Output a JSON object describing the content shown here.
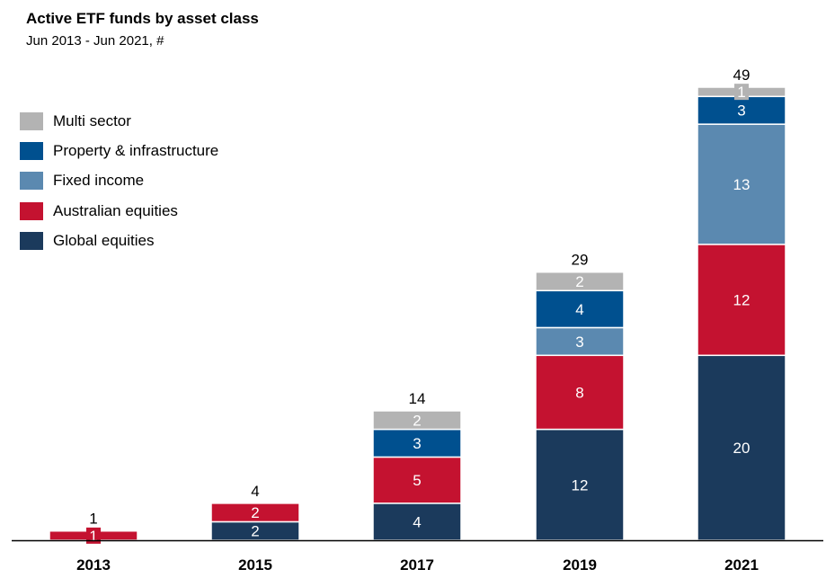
{
  "chart_data": {
    "type": "bar",
    "stacked": true,
    "title": "Active ETF funds by asset class",
    "subtitle": "Jun 2013 - Jun 2021, #",
    "categories": [
      "2013",
      "2015",
      "2017",
      "2019",
      "2021"
    ],
    "series": [
      {
        "name": "Global equities",
        "color": "#1b3a5c",
        "values": [
          0,
          2,
          4,
          12,
          20
        ]
      },
      {
        "name": "Australian equities",
        "color": "#c41230",
        "values": [
          1,
          2,
          5,
          8,
          12
        ]
      },
      {
        "name": "Fixed income",
        "color": "#5b89b0",
        "values": [
          0,
          0,
          0,
          3,
          13
        ]
      },
      {
        "name": "Property & infrastructure",
        "color": "#00508f",
        "values": [
          0,
          0,
          3,
          4,
          3
        ]
      },
      {
        "name": "Multi sector",
        "color": "#b3b3b3",
        "values": [
          0,
          0,
          2,
          2,
          1
        ]
      }
    ],
    "totals": [
      "1",
      "4",
      "14",
      "29",
      "49"
    ],
    "legend_order": [
      "Multi sector",
      "Property & infrastructure",
      "Fixed income",
      "Australian equities",
      "Global equities"
    ],
    "legend_position": "top-left",
    "ylim": [
      0,
      49
    ],
    "grid": false,
    "xlabel": "",
    "ylabel": ""
  }
}
